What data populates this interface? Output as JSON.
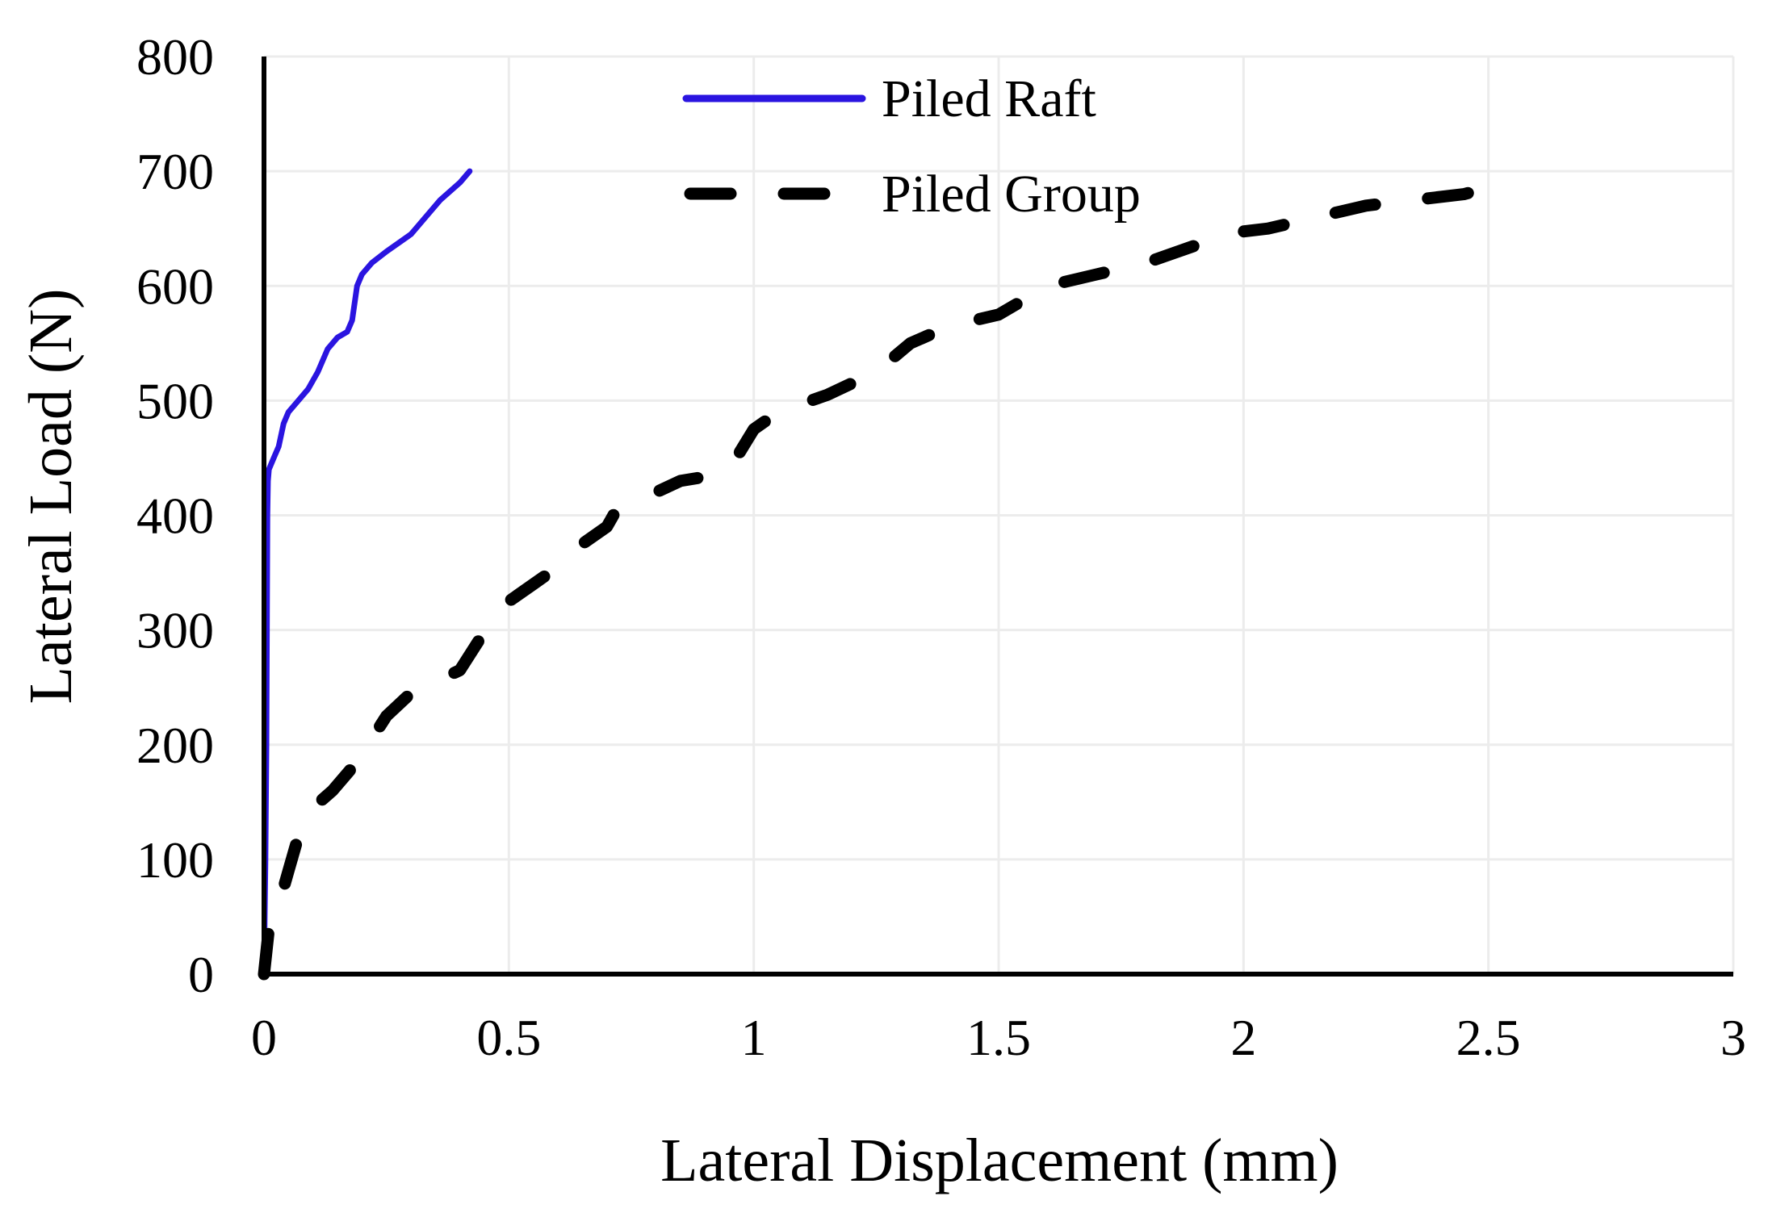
{
  "chart_data": {
    "type": "line",
    "title": "",
    "xlabel": "Lateral Displacement (mm)",
    "ylabel": "Lateral Load (N)",
    "xlim": [
      0,
      3
    ],
    "ylim": [
      0,
      800
    ],
    "xticks": [
      0,
      0.5,
      1,
      1.5,
      2,
      2.5,
      3
    ],
    "xtick_labels": [
      "0",
      "0.5",
      "1",
      "1.5",
      "2",
      "2.5",
      "3"
    ],
    "yticks": [
      0,
      100,
      200,
      300,
      400,
      500,
      600,
      700,
      800
    ],
    "ytick_labels": [
      "0",
      "100",
      "200",
      "300",
      "400",
      "500",
      "600",
      "700",
      "800"
    ],
    "grid": true,
    "legend_position": "top-center",
    "series": [
      {
        "name": "Piled Raft",
        "color": "#2a14e0",
        "line_style": "solid",
        "x": [
          0,
          0.003,
          0.005,
          0.006,
          0.007,
          0.008,
          0.01,
          0.02,
          0.03,
          0.04,
          0.05,
          0.07,
          0.09,
          0.11,
          0.13,
          0.15,
          0.17,
          0.18,
          0.19,
          0.2,
          0.22,
          0.25,
          0.3,
          0.33,
          0.36,
          0.4,
          0.42
        ],
        "values": [
          0,
          100,
          200,
          300,
          400,
          430,
          440,
          450,
          460,
          480,
          490,
          500,
          510,
          525,
          545,
          555,
          560,
          570,
          600,
          610,
          620,
          630,
          645,
          660,
          675,
          690,
          700
        ]
      },
      {
        "name": "Piled Group",
        "color": "#000000",
        "line_style": "dashed",
        "x": [
          0,
          0.01,
          0.03,
          0.05,
          0.07,
          0.1,
          0.14,
          0.18,
          0.22,
          0.25,
          0.3,
          0.35,
          0.4,
          0.43,
          0.46,
          0.5,
          0.55,
          0.6,
          0.65,
          0.7,
          0.72,
          0.75,
          0.85,
          0.92,
          0.95,
          1.0,
          1.05,
          1.15,
          1.25,
          1.32,
          1.4,
          1.5,
          1.6,
          1.7,
          1.8,
          1.9,
          1.95,
          2.05,
          2.15,
          2.25,
          2.35,
          2.45,
          2.52
        ],
        "values": [
          0,
          40,
          60,
          90,
          120,
          145,
          160,
          180,
          205,
          225,
          245,
          255,
          265,
          285,
          305,
          325,
          340,
          355,
          375,
          390,
          405,
          410,
          430,
          435,
          440,
          475,
          490,
          505,
          525,
          550,
          565,
          575,
          600,
          610,
          620,
          635,
          645,
          650,
          660,
          670,
          675,
          680,
          688
        ]
      }
    ]
  }
}
